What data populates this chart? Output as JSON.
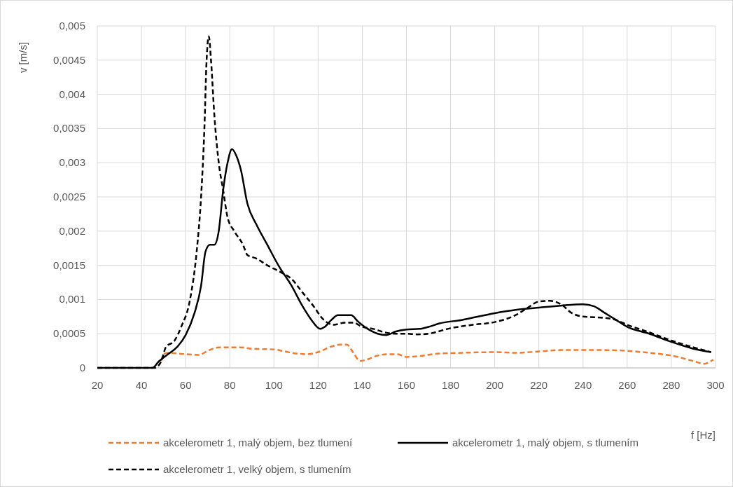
{
  "chart_data": {
    "type": "line",
    "xlabel": "f [Hz]",
    "ylabel": "v [m/s]",
    "xlim": [
      20,
      300
    ],
    "xticks": [
      20,
      40,
      60,
      80,
      100,
      120,
      140,
      160,
      180,
      200,
      220,
      240,
      260,
      280,
      300
    ],
    "ylim": [
      0,
      0.005
    ],
    "yticks": [
      {
        "value": 0,
        "label": "0"
      },
      {
        "value": 0.0005,
        "label": "0,0005"
      },
      {
        "value": 0.001,
        "label": "0,001"
      },
      {
        "value": 0.0015,
        "label": "0,0015"
      },
      {
        "value": 0.002,
        "label": "0,002"
      },
      {
        "value": 0.0025,
        "label": "0,0025"
      },
      {
        "value": 0.003,
        "label": "0,003"
      },
      {
        "value": 0.0035,
        "label": "0,0035"
      },
      {
        "value": 0.004,
        "label": "0,004"
      },
      {
        "value": 0.0045,
        "label": "0,0045"
      },
      {
        "value": 0.005,
        "label": "0,005"
      }
    ],
    "grid": true,
    "legend": "bottom",
    "series": [
      {
        "name": "akcelerometr 1, malý objem, bez tlumení",
        "color": "#ed7d31",
        "line_style": "dashed",
        "x": [
          49,
          50,
          52,
          60,
          66,
          70,
          75,
          80,
          85,
          90,
          100,
          105,
          110,
          115,
          120,
          125,
          130,
          133,
          136,
          139,
          142,
          146,
          152,
          156,
          160,
          165,
          175,
          185,
          200,
          210,
          220,
          230,
          250,
          260,
          270,
          280,
          290,
          295,
          298,
          299
        ],
        "values": [
          0.0001,
          0.0002,
          0.00022,
          0.0002,
          0.00019,
          0.00025,
          0.0003,
          0.0003,
          0.0003,
          0.00028,
          0.00027,
          0.00024,
          0.00021,
          0.0002,
          0.00023,
          0.0003,
          0.00034,
          0.00034,
          0.00022,
          0.0001,
          0.00012,
          0.00017,
          0.0002,
          0.0002,
          0.00016,
          0.00017,
          0.00021,
          0.00022,
          0.00023,
          0.00022,
          0.00024,
          0.00026,
          0.00026,
          0.00025,
          0.00022,
          0.00018,
          0.0001,
          6e-05,
          0.0001,
          0.00012
        ]
      },
      {
        "name": "akcelerometr 1, malý objem, s tlumením",
        "color": "#000000",
        "line_style": "solid",
        "x": [
          20,
          40,
          45,
          48,
          50,
          52,
          56,
          60,
          64,
          67,
          69,
          71,
          73,
          75,
          77,
          79,
          81,
          83,
          85,
          88,
          92,
          97,
          102,
          108,
          113,
          117,
          121,
          123,
          126,
          129,
          135,
          138,
          142,
          147,
          151,
          155,
          160,
          166,
          170,
          175,
          185,
          200,
          210,
          220,
          230,
          240,
          245,
          250,
          255,
          260,
          270,
          280,
          290,
          298
        ],
        "values": [
          0,
          0,
          0,
          0.0001,
          0.00015,
          0.0002,
          0.0003,
          0.00048,
          0.0008,
          0.0012,
          0.0017,
          0.0018,
          0.0018,
          0.002,
          0.0026,
          0.003,
          0.0032,
          0.0031,
          0.0029,
          0.0024,
          0.0021,
          0.0018,
          0.0015,
          0.0012,
          0.0009,
          0.0007,
          0.00057,
          0.0006,
          0.0007,
          0.00077,
          0.00077,
          0.00068,
          0.00058,
          0.0005,
          0.00048,
          0.00053,
          0.00056,
          0.00057,
          0.0006,
          0.00065,
          0.0007,
          0.0008,
          0.00085,
          0.00088,
          0.00091,
          0.00093,
          0.0009,
          0.0008,
          0.0007,
          0.0006,
          0.0005,
          0.00038,
          0.00028,
          0.00023
        ]
      },
      {
        "name": "akcelerometr 1, velký objem, s tlumením",
        "color": "#000000",
        "line_style": "dashed",
        "x": [
          20,
          40,
          46,
          49,
          51,
          55,
          58,
          62,
          65,
          67,
          68.5,
          69.5,
          70.5,
          71.5,
          73,
          75,
          77,
          79,
          82,
          86,
          88,
          92,
          97,
          103,
          108,
          113,
          118,
          122,
          127,
          132,
          136,
          140,
          145,
          150,
          155,
          160,
          165,
          170,
          180,
          190,
          200,
          210,
          215,
          220,
          225,
          230,
          235,
          240,
          250,
          255,
          260,
          270,
          280,
          290,
          298
        ],
        "values": [
          0,
          0,
          0,
          0.0001,
          0.0003,
          0.0004,
          0.0006,
          0.001,
          0.0017,
          0.0025,
          0.0035,
          0.0045,
          0.00485,
          0.0045,
          0.0037,
          0.003,
          0.0026,
          0.0022,
          0.002,
          0.0018,
          0.00165,
          0.0016,
          0.0015,
          0.0014,
          0.0013,
          0.0011,
          0.0009,
          0.00072,
          0.00063,
          0.00066,
          0.00066,
          0.0006,
          0.00057,
          0.00052,
          0.0005,
          0.0005,
          0.00049,
          0.0005,
          0.00058,
          0.00063,
          0.00067,
          0.00078,
          0.00088,
          0.00097,
          0.00098,
          0.00093,
          0.0008,
          0.00075,
          0.00073,
          0.0007,
          0.00063,
          0.00052,
          0.0004,
          0.0003,
          0.00023
        ]
      }
    ]
  }
}
